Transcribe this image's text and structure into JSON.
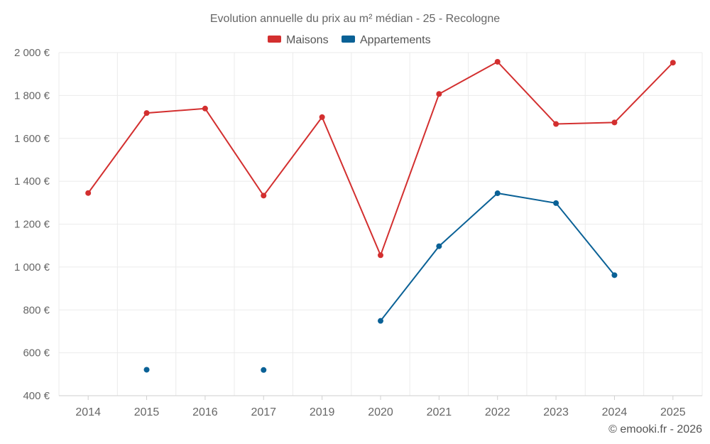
{
  "chart_data": {
    "type": "line",
    "title": "Evolution annuelle du prix au m² médian - 25 - Recologne",
    "categories": [
      "2014",
      "2015",
      "2016",
      "2017",
      "2019",
      "2020",
      "2021",
      "2022",
      "2023",
      "2024",
      "2025"
    ],
    "y_tick_labels": [
      "400 €",
      "600 €",
      "800 €",
      "1 000 €",
      "1 200 €",
      "1 400 €",
      "1 600 €",
      "1 800 €",
      "2 000 €"
    ],
    "y_ticks": [
      400,
      600,
      800,
      1000,
      1200,
      1400,
      1600,
      1800,
      2000
    ],
    "ylim": [
      400,
      2000
    ],
    "grid": true,
    "legend_position": "top-center",
    "series": [
      {
        "name": "Maisons",
        "color": "#d32f2f",
        "values": [
          1345,
          1718,
          1739,
          1333,
          1699,
          1055,
          1807,
          1957,
          1667,
          1674,
          1953
        ]
      },
      {
        "name": "Appartements",
        "color": "#0a6196",
        "values": [
          null,
          521,
          null,
          520,
          null,
          749,
          1097,
          1344,
          1298,
          962,
          null
        ]
      }
    ]
  },
  "credit": "© emooki.fr - 2026"
}
